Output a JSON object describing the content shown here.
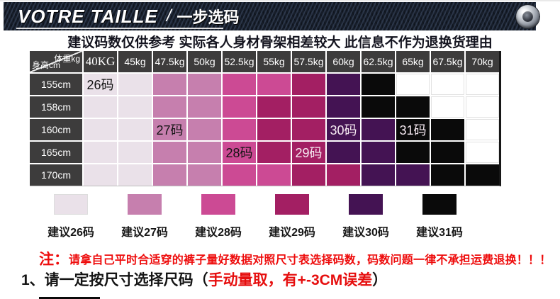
{
  "banner": {
    "title_left": "VOTRE TAILLE",
    "separator": "/",
    "title_right": "一步选码"
  },
  "subtitle": "建议码数仅供参考 实际各人身材骨架相差较大 此信息不作为退换货理由",
  "table": {
    "corner_top_right": "体重kg",
    "corner_bottom_left": "身高cm",
    "labels": [
      {
        "row": 0,
        "col": 0,
        "text": "26码",
        "light": false
      },
      {
        "row": 2,
        "col": 2,
        "text": "27码",
        "light": false
      },
      {
        "row": 3,
        "col": 4,
        "text": "28码",
        "light": false
      },
      {
        "row": 3,
        "col": 6,
        "text": "29码",
        "light": true
      },
      {
        "row": 2,
        "col": 7,
        "text": "30码",
        "light": true
      },
      {
        "row": 2,
        "col": 9,
        "text": "31码",
        "light": true
      }
    ]
  },
  "size_colors": {
    "26": "#eae1e9",
    "27": "#c67fae",
    "28": "#cc4a94",
    "29": "#a31f63",
    "30": "#441353",
    "31": "#0a0a0a"
  },
  "legend": [
    {
      "label": "建议26码",
      "size": "26"
    },
    {
      "label": "建议27码",
      "size": "27"
    },
    {
      "label": "建议28码",
      "size": "28"
    },
    {
      "label": "建议29码",
      "size": "29"
    },
    {
      "label": "建议30码",
      "size": "30"
    },
    {
      "label": "建议31码",
      "size": "31"
    }
  ],
  "notes": {
    "line1_prefix": "注：",
    "line1_text": "请拿自己平时合适穿的裤子量好数据对照尺寸表选择码数，码数问题一律不承担运费退换！！！",
    "line2_black_open": "1、请一定按尺寸选择尺码（",
    "line2_red": "手动量取，有+-3CM误差",
    "line2_black_close": "）"
  },
  "chart_data": {
    "type": "heatmap",
    "title": "VOTRE TAILLE / 一步选码",
    "xlabel": "体重kg",
    "ylabel": "身高cm",
    "x_categories": [
      "40KG",
      "45kg",
      "47.5kg",
      "50kg",
      "52.5kg",
      "55kg",
      "57.5kg",
      "60kg",
      "62.5kg",
      "65kg",
      "67.5kg",
      "70kg"
    ],
    "y_categories": [
      "155cm",
      "158cm",
      "160cm",
      "165cm",
      "170cm"
    ],
    "values": [
      [
        "26",
        "26",
        "27",
        "27",
        "28",
        "28",
        "29",
        "30",
        "31",
        null,
        null,
        null
      ],
      [
        "26",
        "26",
        "27",
        "27",
        "28",
        "29",
        "29",
        "30",
        "31",
        "31",
        null,
        null
      ],
      [
        "26",
        "26",
        "27",
        "27",
        "28",
        "29",
        "29",
        "30",
        "30",
        "31",
        "31",
        null
      ],
      [
        "26",
        "26",
        "27",
        "27",
        "28",
        "29",
        "29",
        "30",
        "30",
        "31",
        "31",
        null
      ],
      [
        "26",
        "26",
        "27",
        "27",
        "28",
        "28",
        "29",
        "29",
        "30",
        "30",
        "31",
        "31"
      ]
    ],
    "legend_entries": [
      "建议26码",
      "建议27码",
      "建议28码",
      "建议29码",
      "建议30码",
      "建议31码"
    ],
    "legend_position": "bottom"
  }
}
